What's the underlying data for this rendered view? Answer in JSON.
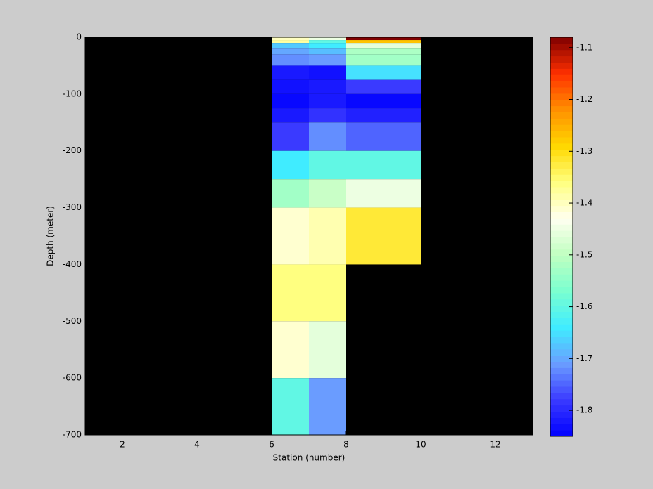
{
  "chart_data": {
    "type": "heatmap",
    "xlabel": "Station (number)",
    "ylabel": "Depth (meter)",
    "xlim": [
      1,
      13
    ],
    "ylim": [
      -700,
      0
    ],
    "xticks": [
      2,
      4,
      6,
      8,
      10,
      12
    ],
    "yticks": [
      0,
      -100,
      -200,
      -300,
      -400,
      -500,
      -600,
      -700
    ],
    "x_edges": [
      6,
      7,
      8,
      10
    ],
    "y_edges": [
      0,
      -5,
      -10,
      -20,
      -30,
      -50,
      -75,
      -100,
      -125,
      -150,
      -200,
      -250,
      -300,
      -400,
      -500,
      -600,
      -700
    ],
    "z": [
      [
        -1.4,
        -1.45,
        -1.08
      ],
      [
        -1.38,
        -1.6,
        -1.27
      ],
      [
        -1.67,
        -1.64,
        -1.46
      ],
      [
        -1.7,
        -1.68,
        -1.52
      ],
      [
        -1.72,
        -1.71,
        -1.53
      ],
      [
        -1.82,
        -1.83,
        -1.65
      ],
      [
        -1.83,
        -1.82,
        -1.78
      ],
      [
        -1.84,
        -1.82,
        -1.84
      ],
      [
        -1.82,
        -1.79,
        -1.81
      ],
      [
        -1.78,
        -1.72,
        -1.75
      ],
      [
        -1.64,
        -1.6,
        -1.6
      ],
      [
        -1.53,
        -1.49,
        -1.45
      ],
      [
        -1.41,
        -1.39,
        -1.32
      ],
      [
        -1.36,
        -1.36,
        null
      ],
      [
        -1.41,
        -1.46,
        null
      ],
      [
        -1.6,
        -1.71,
        null
      ]
    ],
    "clim": [
      -1.85,
      -1.08
    ],
    "cticks": [
      -1.1,
      -1.2,
      -1.3,
      -1.4,
      -1.5,
      -1.6,
      -1.7,
      -1.8
    ],
    "colormap": [
      "#0000ff",
      "#3a3aff",
      "#6a9cff",
      "#40ecff",
      "#7affd0",
      "#c0ffc0",
      "#fffff0",
      "#ffff80",
      "#ffd800",
      "#ff9000",
      "#ff3000",
      "#800000"
    ],
    "background": "#000000"
  }
}
